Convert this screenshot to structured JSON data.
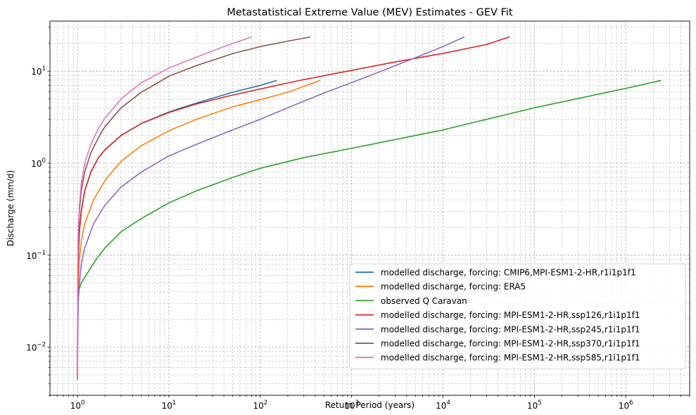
{
  "chart_data": {
    "type": "line",
    "title": "Metastatistical Extreme Value (MEV) Estimates - GEV Fit",
    "xlabel": "Return Period (years)",
    "ylabel": "Discharge (mm/d)",
    "xscale": "log",
    "yscale": "log",
    "xlim": [
      0.5,
      5000000
    ],
    "ylim": [
      0.003,
      35
    ],
    "grid": true,
    "legend_position": "lower right",
    "x_ticks": [
      {
        "value": 1,
        "base": "10",
        "exp": "0"
      },
      {
        "value": 10,
        "base": "10",
        "exp": "1"
      },
      {
        "value": 100,
        "base": "10",
        "exp": "2"
      },
      {
        "value": 1000,
        "base": "10",
        "exp": "3"
      },
      {
        "value": 10000,
        "base": "10",
        "exp": "4"
      },
      {
        "value": 100000,
        "base": "10",
        "exp": "5"
      },
      {
        "value": 1000000,
        "base": "10",
        "exp": "6"
      }
    ],
    "y_ticks": [
      {
        "value": 0.01,
        "base": "10",
        "exp": "−2"
      },
      {
        "value": 0.1,
        "base": "10",
        "exp": "−1"
      },
      {
        "value": 1,
        "base": "10",
        "exp": "0"
      },
      {
        "value": 10,
        "base": "10",
        "exp": "1"
      }
    ],
    "series": [
      {
        "name": "modelled discharge, forcing: CMIP6,MPI-ESM1-2-HR,r1i1p1f1",
        "color": "#1f77b4",
        "points": [
          [
            1.0,
            0.0045
          ],
          [
            1.005,
            0.03
          ],
          [
            1.02,
            0.09
          ],
          [
            1.05,
            0.18
          ],
          [
            1.1,
            0.3
          ],
          [
            1.2,
            0.5
          ],
          [
            1.4,
            0.8
          ],
          [
            1.7,
            1.15
          ],
          [
            2,
            1.4
          ],
          [
            3,
            2.0
          ],
          [
            5,
            2.7
          ],
          [
            10,
            3.6
          ],
          [
            20,
            4.5
          ],
          [
            50,
            5.9
          ],
          [
            100,
            7.0
          ],
          [
            150,
            7.9
          ]
        ]
      },
      {
        "name": "modelled discharge, forcing: ERA5",
        "color": "#ff7f0e",
        "points": [
          [
            1.0,
            0.0045
          ],
          [
            1.005,
            0.02
          ],
          [
            1.02,
            0.05
          ],
          [
            1.05,
            0.09
          ],
          [
            1.1,
            0.14
          ],
          [
            1.2,
            0.22
          ],
          [
            1.5,
            0.4
          ],
          [
            2,
            0.65
          ],
          [
            3,
            1.05
          ],
          [
            5,
            1.55
          ],
          [
            10,
            2.25
          ],
          [
            20,
            3.0
          ],
          [
            50,
            4.1
          ],
          [
            100,
            4.9
          ],
          [
            200,
            5.9
          ],
          [
            450,
            7.9
          ]
        ]
      },
      {
        "name": "observed Q Caravan",
        "color": "#2ca02c",
        "points": [
          [
            1.0,
            0.0045
          ],
          [
            1.005,
            0.03
          ],
          [
            1.02,
            0.04
          ],
          [
            1.1,
            0.05
          ],
          [
            1.3,
            0.065
          ],
          [
            1.6,
            0.09
          ],
          [
            2,
            0.12
          ],
          [
            3,
            0.18
          ],
          [
            5,
            0.25
          ],
          [
            10,
            0.37
          ],
          [
            20,
            0.5
          ],
          [
            50,
            0.7
          ],
          [
            100,
            0.88
          ],
          [
            300,
            1.15
          ],
          [
            1000,
            1.45
          ],
          [
            10000,
            2.3
          ],
          [
            100000,
            4.0
          ],
          [
            1000000,
            6.5
          ],
          [
            2400000,
            7.9
          ]
        ]
      },
      {
        "name": "modelled discharge, forcing: MPI-ESM1-2-HR,ssp126,r1i1p1f1",
        "color": "#d62728",
        "points": [
          [
            1.0,
            0.0045
          ],
          [
            1.005,
            0.03
          ],
          [
            1.02,
            0.09
          ],
          [
            1.05,
            0.18
          ],
          [
            1.1,
            0.3
          ],
          [
            1.2,
            0.5
          ],
          [
            1.4,
            0.8
          ],
          [
            1.7,
            1.15
          ],
          [
            2,
            1.4
          ],
          [
            3,
            2.0
          ],
          [
            5,
            2.7
          ],
          [
            10,
            3.55
          ],
          [
            20,
            4.4
          ],
          [
            50,
            5.5
          ],
          [
            100,
            6.4
          ],
          [
            300,
            8.1
          ],
          [
            1000,
            10.2
          ],
          [
            3000,
            12.6
          ],
          [
            10000,
            15.6
          ],
          [
            30000,
            19.5
          ],
          [
            53000,
            23.5
          ]
        ]
      },
      {
        "name": "modelled discharge, forcing: MPI-ESM1-2-HR,ssp245,r1i1p1f1",
        "color": "#9467bd",
        "points": [
          [
            1.0,
            0.0045
          ],
          [
            1.005,
            0.01
          ],
          [
            1.02,
            0.03
          ],
          [
            1.05,
            0.05
          ],
          [
            1.1,
            0.08
          ],
          [
            1.2,
            0.12
          ],
          [
            1.5,
            0.22
          ],
          [
            2,
            0.35
          ],
          [
            3,
            0.55
          ],
          [
            5,
            0.8
          ],
          [
            10,
            1.2
          ],
          [
            20,
            1.6
          ],
          [
            50,
            2.3
          ],
          [
            100,
            3.0
          ],
          [
            200,
            4.0
          ],
          [
            500,
            5.8
          ],
          [
            1000,
            7.5
          ],
          [
            2000,
            9.8
          ],
          [
            5000,
            14.0
          ],
          [
            10000,
            18.5
          ],
          [
            17000,
            23.5
          ]
        ]
      },
      {
        "name": "modelled discharge, forcing: MPI-ESM1-2-HR,ssp370,r1i1p1f1",
        "color": "#8c564b",
        "points": [
          [
            1.0,
            0.0045
          ],
          [
            1.005,
            0.05
          ],
          [
            1.02,
            0.15
          ],
          [
            1.05,
            0.3
          ],
          [
            1.1,
            0.5
          ],
          [
            1.2,
            0.8
          ],
          [
            1.4,
            1.3
          ],
          [
            1.7,
            1.9
          ],
          [
            2,
            2.5
          ],
          [
            3,
            4.0
          ],
          [
            5,
            5.9
          ],
          [
            10,
            8.8
          ],
          [
            20,
            11.5
          ],
          [
            50,
            15.5
          ],
          [
            100,
            18.5
          ],
          [
            200,
            21.2
          ],
          [
            350,
            23.5
          ]
        ]
      },
      {
        "name": "modelled discharge, forcing: MPI-ESM1-2-HR,ssp585,r1i1p1f1",
        "color": "#e377c2",
        "points": [
          [
            1.0,
            0.0045
          ],
          [
            1.005,
            0.06
          ],
          [
            1.02,
            0.18
          ],
          [
            1.05,
            0.35
          ],
          [
            1.1,
            0.6
          ],
          [
            1.2,
            1.0
          ],
          [
            1.4,
            1.6
          ],
          [
            1.7,
            2.4
          ],
          [
            2,
            3.1
          ],
          [
            3,
            5.0
          ],
          [
            5,
            7.5
          ],
          [
            10,
            10.8
          ],
          [
            20,
            14.2
          ],
          [
            40,
            18.5
          ],
          [
            80,
            23.5
          ]
        ]
      }
    ]
  }
}
